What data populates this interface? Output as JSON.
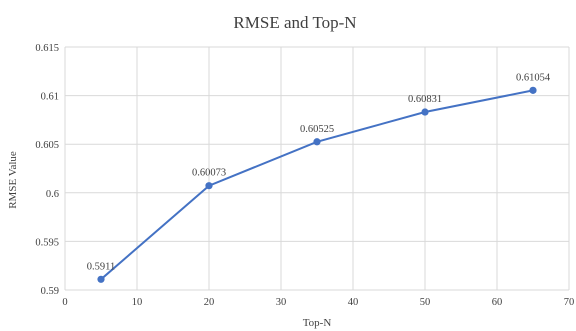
{
  "chart_data": {
    "type": "line",
    "title": "RMSE and Top-N",
    "xlabel": "Top-N",
    "ylabel": "RMSE Value",
    "xlim": [
      0,
      70
    ],
    "ylim": [
      0.59,
      0.615
    ],
    "x_ticks": [
      "0",
      "10",
      "20",
      "30",
      "40",
      "50",
      "60",
      "70"
    ],
    "y_ticks": [
      "0.59",
      "0.595",
      "0.6",
      "0.605",
      "0.61",
      "0.615"
    ],
    "grid": true,
    "legend": "none",
    "series": [
      {
        "color": "#4472c4",
        "x": [
          5,
          20,
          35,
          50,
          65
        ],
        "values": [
          0.5911,
          0.60073,
          0.60525,
          0.60831,
          0.61054
        ],
        "labels": [
          "0.5911",
          "0.60073",
          "0.60525",
          "0.60831",
          "0.61054"
        ]
      }
    ]
  }
}
